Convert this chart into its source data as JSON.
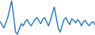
{
  "values": [
    45,
    38,
    30,
    42,
    55,
    75,
    95,
    60,
    20,
    15,
    28,
    40,
    35,
    45,
    50,
    42,
    35,
    42,
    50,
    55,
    48,
    40,
    50,
    55,
    45,
    35,
    48,
    65,
    80,
    55,
    30,
    20,
    35,
    50,
    55,
    45,
    38,
    52,
    48,
    42,
    50,
    45,
    35,
    45,
    48,
    40,
    35,
    42,
    45,
    38
  ],
  "line_color": "#2878b5",
  "background_color": "#ffffff",
  "linewidth": 1.0
}
